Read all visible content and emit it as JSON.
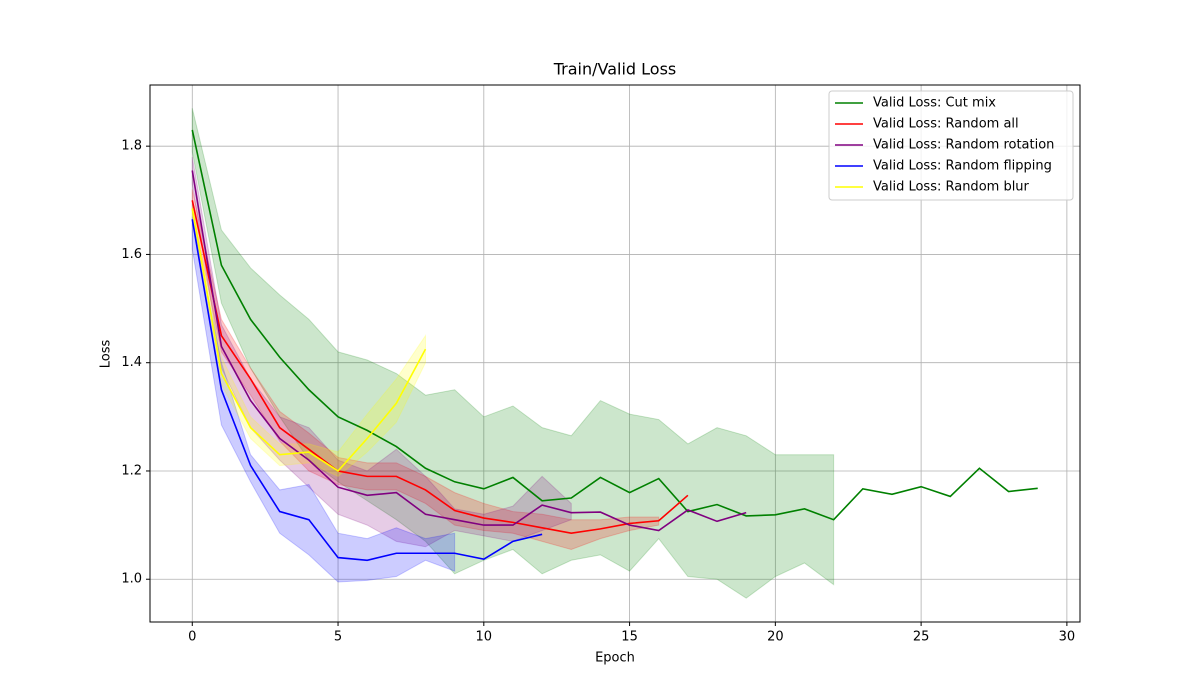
{
  "chart_data": {
    "type": "line",
    "title": "Train/Valid Loss",
    "x_label": "Epoch",
    "y_label": "Loss",
    "xlim": [
      -1.45,
      30.45
    ],
    "ylim": [
      0.921,
      1.913
    ],
    "xticks": [
      0,
      5,
      10,
      15,
      20,
      25,
      30
    ],
    "yticks": [
      {
        "value": 1,
        "label": "1.0"
      },
      1.2,
      1.4,
      1.6,
      1.8
    ],
    "grid": true,
    "legend": "upper right",
    "series": [
      {
        "name": "Valid Loss: Cut mix",
        "color": "#008000",
        "x": [
          0,
          1,
          2,
          3,
          4,
          5,
          6,
          7,
          8,
          9,
          10,
          11,
          12,
          13,
          14,
          15,
          16,
          17,
          18,
          19,
          20,
          21,
          22,
          23,
          24,
          25,
          26,
          27,
          28,
          29
        ],
        "values": [
          1.83,
          1.58,
          1.48,
          1.41,
          1.35,
          1.3,
          1.275,
          1.245,
          1.205,
          1.18,
          1.167,
          1.188,
          1.145,
          1.15,
          1.188,
          1.16,
          1.186,
          1.125,
          1.138,
          1.117,
          1.119,
          1.13,
          1.11,
          1.167,
          1.157,
          1.171,
          1.153,
          1.205,
          1.162,
          1.168
        ],
        "upper": [
          1.87,
          1.645,
          1.575,
          1.525,
          1.48,
          1.42,
          1.405,
          1.38,
          1.34,
          1.35,
          1.3,
          1.32,
          1.28,
          1.265,
          1.33,
          1.305,
          1.295,
          1.25,
          1.28,
          1.265,
          1.23,
          1.23,
          1.23,
          null,
          null,
          null,
          null,
          null,
          null,
          null
        ],
        "lower": [
          1.79,
          1.51,
          1.39,
          1.3,
          1.22,
          1.18,
          1.145,
          1.11,
          1.07,
          1.01,
          1.035,
          1.055,
          1.01,
          1.035,
          1.045,
          1.015,
          1.075,
          1.005,
          1.0,
          0.965,
          1.005,
          1.03,
          0.99,
          null,
          null,
          null,
          null,
          null,
          null,
          null
        ]
      },
      {
        "name": "Valid Loss: Random all",
        "color": "#ff0000",
        "x": [
          0,
          1,
          2,
          3,
          4,
          5,
          6,
          7,
          8,
          9,
          10,
          11,
          12,
          13,
          14,
          15,
          16,
          17
        ],
        "values": [
          1.7,
          1.45,
          1.37,
          1.28,
          1.24,
          1.2,
          1.19,
          1.19,
          1.165,
          1.127,
          1.113,
          1.105,
          1.095,
          1.085,
          1.093,
          1.103,
          1.108,
          1.155
        ],
        "upper": [
          1.72,
          1.48,
          1.39,
          1.31,
          1.27,
          1.225,
          1.215,
          1.215,
          1.19,
          1.16,
          1.14,
          1.125,
          1.12,
          1.11,
          1.11,
          1.115,
          1.115,
          null
        ],
        "lower": [
          1.68,
          1.42,
          1.34,
          1.255,
          1.2,
          1.175,
          1.165,
          1.165,
          1.14,
          1.1,
          1.09,
          1.085,
          1.07,
          1.055,
          1.075,
          1.09,
          1.1,
          null
        ]
      },
      {
        "name": "Valid Loss: Random rotation",
        "color": "#800080",
        "x": [
          0,
          1,
          2,
          3,
          4,
          5,
          6,
          7,
          8,
          9,
          10,
          11,
          12,
          13,
          14,
          15,
          16,
          17,
          18,
          19
        ],
        "values": [
          1.755,
          1.43,
          1.33,
          1.26,
          1.22,
          1.17,
          1.155,
          1.16,
          1.12,
          1.11,
          1.1,
          1.1,
          1.137,
          1.123,
          1.124,
          1.1,
          1.09,
          1.128,
          1.107,
          1.123
        ],
        "upper": [
          1.78,
          1.47,
          1.37,
          1.3,
          1.28,
          1.22,
          1.2,
          1.24,
          1.19,
          1.13,
          1.12,
          1.135,
          1.19,
          1.14,
          null,
          null,
          null,
          null,
          null,
          null
        ],
        "lower": [
          1.73,
          1.39,
          1.28,
          1.22,
          1.17,
          1.12,
          1.1,
          1.07,
          1.06,
          1.09,
          1.08,
          1.07,
          1.09,
          1.11,
          null,
          null,
          null,
          null,
          null,
          null
        ]
      },
      {
        "name": "Valid Loss: Random flipping",
        "color": "#0000ff",
        "x": [
          0,
          1,
          2,
          3,
          4,
          5,
          6,
          7,
          8,
          9,
          10,
          11,
          12
        ],
        "values": [
          1.665,
          1.35,
          1.21,
          1.125,
          1.11,
          1.04,
          1.035,
          1.048,
          1.048,
          1.048,
          1.037,
          1.07,
          1.083
        ],
        "upper": [
          1.67,
          1.4,
          1.23,
          1.165,
          1.175,
          1.085,
          1.075,
          1.095,
          1.075,
          1.085,
          null,
          null,
          null
        ],
        "lower": [
          1.61,
          1.285,
          1.18,
          1.085,
          1.045,
          0.995,
          0.998,
          1.005,
          1.035,
          1.015,
          null,
          null,
          null
        ]
      },
      {
        "name": "Valid Loss: Random blur",
        "color": "#ffff00",
        "x": [
          0,
          1,
          2,
          3,
          4,
          5,
          6,
          7,
          8
        ],
        "values": [
          1.685,
          1.38,
          1.28,
          1.23,
          1.235,
          1.2,
          1.26,
          1.325,
          1.425
        ],
        "upper": [
          1.69,
          1.41,
          1.3,
          1.25,
          1.25,
          1.235,
          1.305,
          1.37,
          1.45
        ],
        "lower": [
          1.67,
          1.36,
          1.26,
          1.21,
          1.215,
          1.19,
          1.235,
          1.29,
          1.4
        ]
      }
    ]
  }
}
